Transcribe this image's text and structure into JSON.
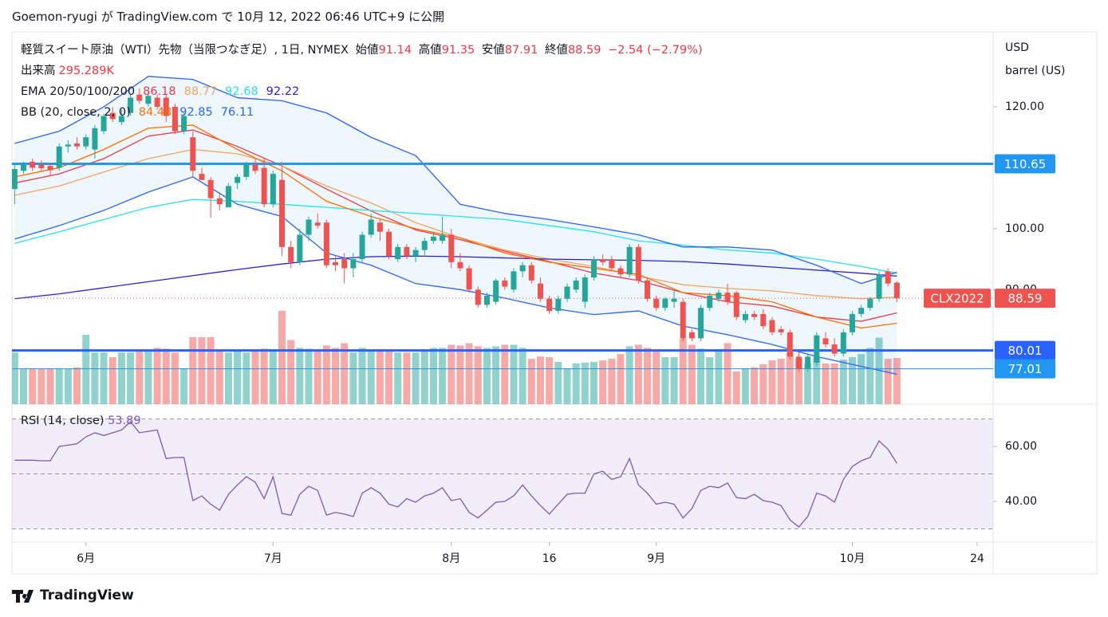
{
  "chart_data": {
    "type": "candlestick",
    "header": "Goemon-ryugi が TradingView.com で 10月 12, 2022 06:46 UTC+9 に公開",
    "brand": "TradingView",
    "symbol_title": "軽質スイート原油（WTI）先物（当限つなぎ足）, 1日, NYMEX",
    "symbol": "CLX2022",
    "ohlc_labels": [
      "始値",
      "高値",
      "安値",
      "終値"
    ],
    "change": "−2.54 (−2.79%)",
    "axis_units": [
      "USD",
      "barrel (US)"
    ],
    "colors": {
      "up": "#26a69a",
      "down": "#ef5350",
      "up_volume": "rgba(38,166,154,0.5)",
      "down_volume": "rgba(239,83,80,0.5)"
    },
    "xlim": [
      -0.3,
      109.8
    ],
    "xticks": [
      {
        "value": 8,
        "label": "6月"
      },
      {
        "value": 29,
        "label": "7月"
      },
      {
        "value": 49,
        "label": "8月"
      },
      {
        "value": 60,
        "label": "16"
      },
      {
        "value": 72,
        "label": "9月"
      },
      {
        "value": 94,
        "label": "10月"
      },
      {
        "value": 108,
        "label": "24"
      }
    ],
    "ylim": [
      71.2,
      132.3
    ],
    "yticks": [
      {
        "value": 90,
        "label": "90.00"
      },
      {
        "value": 100,
        "label": "100.00"
      },
      {
        "value": 120,
        "label": "120.00"
      }
    ],
    "ohlc": [
      [
        106.5,
        110.5,
        104,
        109.8
      ],
      [
        109.5,
        111,
        109,
        110.5
      ],
      [
        111,
        111.5,
        109.5,
        110
      ],
      [
        110.5,
        111.2,
        109.5,
        109.9
      ],
      [
        110.3,
        110.8,
        108.8,
        109.6
      ],
      [
        110,
        114,
        109.5,
        113.5
      ],
      [
        113.5,
        114.5,
        112.5,
        113.8
      ],
      [
        114,
        115,
        113,
        113.5
      ],
      [
        113.5,
        115.5,
        113,
        115
      ],
      [
        113,
        117,
        111.5,
        116.5
      ],
      [
        116,
        118.8,
        115.5,
        118.5
      ],
      [
        119,
        120,
        117.5,
        118
      ],
      [
        117.5,
        119.5,
        117,
        118.5
      ],
      [
        119,
        122,
        118.5,
        121.5
      ],
      [
        122,
        123,
        120.5,
        121
      ],
      [
        120.5,
        122.5,
        120,
        121.8
      ],
      [
        121.5,
        122,
        119.5,
        120
      ],
      [
        121.5,
        122,
        117.5,
        118.5
      ],
      [
        120,
        120.5,
        115.5,
        116
      ],
      [
        116,
        119,
        115.5,
        118.5
      ],
      [
        115,
        116,
        108.5,
        109.5
      ],
      [
        109,
        110,
        108,
        108
      ],
      [
        108,
        108.5,
        101.8,
        105
      ],
      [
        105,
        106,
        103,
        104
      ],
      [
        103.5,
        107.5,
        103.5,
        107
      ],
      [
        107.5,
        109,
        106.5,
        108.5
      ],
      [
        108.5,
        111,
        108,
        110.5
      ],
      [
        110.5,
        111.5,
        109,
        109.5
      ],
      [
        110,
        111.5,
        103.5,
        104
      ],
      [
        104,
        109.5,
        103.5,
        109
      ],
      [
        108,
        111,
        95.5,
        97
      ],
      [
        97,
        98,
        93.5,
        94.5
      ],
      [
        94.5,
        100,
        94,
        99
      ],
      [
        99,
        102,
        98,
        101.5
      ],
      [
        101,
        102.5,
        100,
        100.5
      ],
      [
        101,
        101.5,
        93.5,
        94
      ],
      [
        94.5,
        95.5,
        93,
        94
      ],
      [
        95,
        96,
        91,
        93.5
      ],
      [
        93.5,
        96,
        92,
        95
      ],
      [
        95,
        99.5,
        94.5,
        99
      ],
      [
        99,
        102.5,
        98.5,
        101.5
      ],
      [
        101,
        101.5,
        98,
        99.5
      ],
      [
        99.5,
        100,
        95,
        95.5
      ],
      [
        95,
        97.5,
        94.5,
        97
      ],
      [
        97,
        97.5,
        95,
        95.5
      ],
      [
        95.5,
        97,
        94.5,
        96.5
      ],
      [
        96.5,
        98.5,
        95.5,
        98
      ],
      [
        98,
        99.5,
        97.5,
        98.7
      ],
      [
        98,
        102,
        97.5,
        99
      ],
      [
        99,
        100,
        93.5,
        94.5
      ],
      [
        94.5,
        96,
        93,
        93.5
      ],
      [
        93.5,
        94,
        89.5,
        90
      ],
      [
        90,
        90.5,
        87,
        87.5
      ],
      [
        87.5,
        89.5,
        87,
        89
      ],
      [
        88,
        91.8,
        87.5,
        91.5
      ],
      [
        91.5,
        92,
        90,
        90.5
      ],
      [
        90,
        93.5,
        89.5,
        93
      ],
      [
        93,
        94.5,
        92,
        94
      ],
      [
        94,
        94.5,
        91,
        91.5
      ],
      [
        91,
        92,
        88,
        88.5
      ],
      [
        88.5,
        89,
        86,
        86.5
      ],
      [
        86.5,
        89,
        86,
        88.5
      ],
      [
        88.5,
        91,
        88,
        90.5
      ],
      [
        90,
        92,
        89.5,
        91.5
      ],
      [
        88,
        92.5,
        87,
        92
      ],
      [
        92,
        95.5,
        91.5,
        95
      ],
      [
        95,
        95.8,
        94,
        94.5
      ],
      [
        95,
        95.5,
        93,
        93.5
      ],
      [
        93.5,
        94,
        92,
        92.5
      ],
      [
        92.5,
        97.5,
        92,
        97
      ],
      [
        97,
        97.5,
        91,
        91.5
      ],
      [
        91.5,
        92,
        88,
        88.5
      ],
      [
        88.5,
        89,
        86.5,
        87
      ],
      [
        87,
        88.8,
        86.5,
        88.5
      ],
      [
        88,
        90,
        87,
        88.5
      ],
      [
        88,
        88.5,
        81.5,
        82
      ],
      [
        83,
        83.5,
        81.5,
        82
      ],
      [
        82,
        87.5,
        81.5,
        87
      ],
      [
        87,
        89.5,
        86.5,
        89
      ],
      [
        88.5,
        90,
        88,
        89.5
      ],
      [
        89.5,
        91,
        87.5,
        88
      ],
      [
        89.5,
        89.8,
        85,
        85.5
      ],
      [
        85,
        86.5,
        84.5,
        86
      ],
      [
        86,
        86.5,
        85,
        85.5
      ],
      [
        86,
        86.8,
        83.5,
        84
      ],
      [
        85,
        85.5,
        82.5,
        83
      ],
      [
        83.5,
        84,
        82.5,
        83
      ],
      [
        83,
        83.5,
        78.5,
        79
      ],
      [
        79,
        80,
        76.5,
        77
      ],
      [
        77,
        79.5,
        76.5,
        79
      ],
      [
        78,
        83,
        77.5,
        82.5
      ],
      [
        82,
        83,
        80.5,
        81
      ],
      [
        81,
        82,
        79,
        79.5
      ],
      [
        79.5,
        83.5,
        79,
        83
      ],
      [
        83,
        86.5,
        82.5,
        86
      ],
      [
        86,
        87.5,
        85.5,
        87
      ],
      [
        87,
        88.8,
        86.5,
        88.5
      ],
      [
        88.5,
        93,
        88,
        92.5
      ],
      [
        93,
        93.5,
        90.5,
        91
      ],
      [
        91.14,
        91.35,
        87.91,
        88.59
      ]
    ],
    "volume": {
      "name": "出来高",
      "value_label": "295.289K",
      "lim": [
        0,
        2380
      ],
      "values": [
        330,
        225,
        225,
        225,
        225,
        230,
        225,
        235,
        444,
        330,
        330,
        300,
        330,
        330,
        340,
        340,
        360,
        355,
        330,
        230,
        428,
        428,
        428,
        340,
        330,
        340,
        330,
        340,
        355,
        350,
        597,
        410,
        360,
        355,
        350,
        375,
        360,
        390,
        330,
        360,
        350,
        350,
        350,
        330,
        330,
        330,
        340,
        360,
        360,
        380,
        375,
        390,
        370,
        360,
        370,
        380,
        380,
        360,
        290,
        305,
        300,
        270,
        230,
        260,
        265,
        270,
        280,
        290,
        320,
        370,
        380,
        360,
        340,
        300,
        300,
        420,
        380,
        355,
        300,
        350,
        390,
        210,
        230,
        235,
        255,
        280,
        290,
        330,
        290,
        260,
        300,
        260,
        260,
        285,
        300,
        320,
        360,
        425,
        290,
        295.289
      ]
    },
    "line_x": [
      0,
      5,
      10,
      15,
      20,
      25,
      30,
      35,
      40,
      45,
      50,
      55,
      60,
      65,
      70,
      75,
      80,
      85,
      90,
      95,
      99
    ],
    "indicators": [
      {
        "name": "EMA 20/50/100/200",
        "lines": [
          {
            "color": "#f23645",
            "values": [
              107.5,
              109,
              111.5,
              115.2,
              116.2,
              113.5,
              110.3,
              106.5,
              102.9,
              99.8,
              98.2,
              96.3,
              94.6,
              92.7,
              91.5,
              89.5,
              88,
              87.3,
              85.5,
              84.8,
              86.18
            ]
          },
          {
            "color": "#f7a35c",
            "values": [
              105.5,
              107,
              109.3,
              111.5,
              113,
              112.3,
              110.3,
              107,
              104.2,
              101,
              98.5,
              96.5,
              95,
              93.8,
              92.2,
              90.8,
              90.2,
              89.8,
              89,
              88.5,
              88.77
            ]
          },
          {
            "color": "#26e0f0",
            "values": [
              97.6,
              99.5,
              101.5,
              103.5,
              104.8,
              104.5,
              104,
              103.5,
              103,
              102.5,
              102,
              101.5,
              100.5,
              99.5,
              98,
              97.3,
              96.5,
              96,
              95,
              93.8,
              92.68
            ]
          },
          {
            "color": "#2a1fd6",
            "values": [
              88.5,
              89.3,
              90.3,
              91.3,
              92.3,
              93.3,
              94.2,
              95,
              95.4,
              95.5,
              95.4,
              95.2,
              95,
              94.9,
              94.8,
              94.6,
              94.2,
              93.7,
              93.2,
              92.7,
              92.22
            ]
          }
        ]
      },
      {
        "name": "BB (20, close, 2, 0)",
        "fill": "rgba(33,150,243,0.08)",
        "lines": [
          {
            "color": "#ff6d00",
            "values": [
              108.5,
              110,
              113,
              116.5,
              117,
              113,
              109.5,
              104.5,
              102,
              100,
              98.5,
              96,
              94.5,
              93.5,
              92.5,
              89.5,
              89,
              88,
              85.5,
              83.7,
              84.48
            ]
          },
          {
            "color": "#2962ff",
            "values": [
              114,
              116,
              120,
              125,
              124.5,
              121.5,
              121,
              119,
              115,
              112,
              104,
              102.5,
              101.5,
              100.3,
              99,
              97,
              97,
              96.5,
              94,
              91,
              92.85
            ]
          },
          {
            "color": "#2962ff",
            "values": [
              98.3,
              100.5,
              103,
              106,
              108.5,
              104,
              102,
              96,
              94,
              91,
              90,
              88.6,
              87,
              85.9,
              86.5,
              84,
              82.6,
              81,
              79,
              77.4,
              76.11
            ]
          }
        ]
      }
    ],
    "levels": [
      {
        "value": 110.65,
        "color": "#2196f3",
        "width": 3
      },
      {
        "value": 80.01,
        "color": "#2962ff",
        "width": 3
      },
      {
        "value": 77.01,
        "color": "#2196f3",
        "width": 1
      }
    ],
    "rsi": {
      "name": "RSI (14, close)",
      "color": "#7e57c2",
      "ylim": [
        25.2,
        75.4
      ],
      "yticks": [
        {
          "value": 40,
          "label": "40.00"
        },
        {
          "value": 60,
          "label": "60.00"
        }
      ],
      "levels": [
        70,
        50,
        30
      ],
      "values": [
        55,
        55,
        55,
        54.8,
        54.8,
        60,
        60.5,
        61,
        63.5,
        65,
        64,
        65,
        66,
        69,
        65,
        65.5,
        66,
        55.6,
        56,
        56,
        40.3,
        42,
        39,
        36.8,
        42.6,
        46,
        49,
        47,
        41,
        49,
        35.6,
        35,
        42.6,
        45.5,
        44,
        35,
        36,
        35.4,
        34.5,
        43,
        45,
        43,
        39,
        38,
        41,
        39.7,
        42,
        43,
        45,
        40.3,
        41,
        36,
        34,
        36.8,
        39.7,
        40,
        42,
        46,
        42,
        38.5,
        35.4,
        39,
        42.6,
        43,
        43,
        50,
        51,
        48,
        49,
        55.6,
        46,
        43,
        39,
        39.7,
        39,
        34,
        37.4,
        44,
        45.5,
        45,
        46.7,
        41.4,
        41,
        42.6,
        40.3,
        39.7,
        38.5,
        33.3,
        30.7,
        34.5,
        43,
        42,
        39.7,
        48,
        52.7,
        54.8,
        56,
        62,
        59,
        53.89
      ]
    }
  }
}
